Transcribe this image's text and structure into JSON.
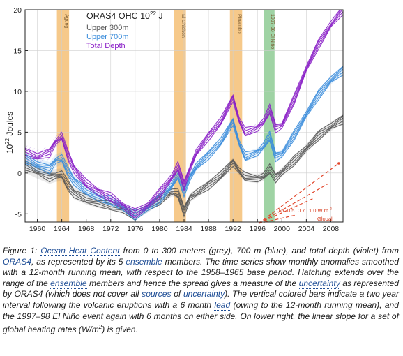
{
  "chart_data": {
    "type": "line",
    "title": "ORAS4 OHC 10",
    "title_sup": "22",
    "title_unit": "J",
    "ylabel": "10",
    "ylabel_sup": "22",
    "ylabel_unit": "Joules",
    "xlim": [
      1958,
      2010
    ],
    "ylim": [
      -6,
      20
    ],
    "xticks": [
      "1960",
      "1964",
      "1968",
      "1972",
      "1976",
      "1980",
      "1984",
      "1988",
      "1992",
      "1996",
      "2000",
      "2004",
      "2008"
    ],
    "yticks": [
      "-5",
      "0",
      "5",
      "10",
      "15",
      "20"
    ],
    "legend": [
      {
        "name": "Upper 300m",
        "color": "#555555"
      },
      {
        "name": "Upper 700m",
        "color": "#3b8ddb"
      },
      {
        "name": "Total Depth",
        "color": "#8a1fc7"
      }
    ],
    "event_bars": [
      {
        "label": "Agung",
        "start": 1963.2,
        "end": 1965.2,
        "color": "#f6c98a"
      },
      {
        "label": "El Chichon",
        "start": 1982.3,
        "end": 1984.3,
        "color": "#f6c98a"
      },
      {
        "label": "Pinatubo",
        "start": 1991.5,
        "end": 1993.5,
        "color": "#f6c98a"
      },
      {
        "label": "1997-98 El Niño",
        "start": 1997.0,
        "end": 1998.8,
        "color": "#9fd3a4"
      }
    ],
    "series": [
      {
        "name": "Upper 300m",
        "color": "#555555",
        "x": [
          1958,
          1960,
          1962,
          1963,
          1964,
          1965,
          1966,
          1968,
          1970,
          1972,
          1974,
          1976,
          1978,
          1980,
          1982,
          1983,
          1984,
          1985,
          1986,
          1988,
          1990,
          1992,
          1993,
          1994,
          1996,
          1997,
          1998,
          1999,
          2000,
          2002,
          2004,
          2006,
          2008,
          2010
        ],
        "y": [
          1.0,
          0.2,
          -0.5,
          -0.3,
          -0.2,
          -1.5,
          -2.5,
          -3.2,
          -3.7,
          -4.0,
          -4.5,
          -5.2,
          -4.3,
          -3.3,
          -2.3,
          -2.5,
          -4.7,
          -3.0,
          -2.5,
          -1.5,
          -0.3,
          1.3,
          0.3,
          -0.5,
          -0.7,
          -0.4,
          0.5,
          -0.6,
          0.1,
          1.5,
          3.0,
          4.6,
          5.7,
          6.6
        ]
      },
      {
        "name": "Upper 700m",
        "color": "#3b8ddb",
        "x": [
          1958,
          1960,
          1962,
          1963,
          1964,
          1965,
          1966,
          1968,
          1970,
          1972,
          1974,
          1976,
          1978,
          1980,
          1982,
          1983,
          1984,
          1985,
          1986,
          1988,
          1990,
          1992,
          1993,
          1994,
          1996,
          1997,
          1998,
          1999,
          2000,
          2002,
          2004,
          2006,
          2008,
          2010
        ],
        "y": [
          1.8,
          1.0,
          0.5,
          1.5,
          1.8,
          0.2,
          -1.0,
          -2.2,
          -3.0,
          -3.4,
          -4.2,
          -5.2,
          -4.3,
          -3.2,
          -1.5,
          -0.2,
          -2.3,
          -0.5,
          0.8,
          2.2,
          3.8,
          6.3,
          3.7,
          2.0,
          2.5,
          3.3,
          4.5,
          2.0,
          2.3,
          4.6,
          7.2,
          9.6,
          11.4,
          12.6
        ]
      },
      {
        "name": "Total Depth",
        "color": "#8a1fc7",
        "x": [
          1958,
          1960,
          1962,
          1963,
          1964,
          1965,
          1966,
          1968,
          1970,
          1972,
          1974,
          1976,
          1978,
          1980,
          1982,
          1983,
          1984,
          1985,
          1986,
          1988,
          1990,
          1992,
          1993,
          1994,
          1996,
          1997,
          1998,
          1999,
          2000,
          2002,
          2004,
          2006,
          2008,
          2010
        ],
        "y": [
          2.5,
          2.0,
          2.5,
          3.8,
          4.5,
          2.2,
          0.5,
          -1.3,
          -2.3,
          -3.0,
          -4.0,
          -5.0,
          -4.0,
          -2.5,
          -0.5,
          0.8,
          -1.5,
          0.6,
          2.5,
          4.5,
          6.3,
          9.2,
          6.5,
          5.0,
          5.5,
          6.3,
          7.8,
          5.5,
          5.8,
          9.0,
          12.8,
          15.8,
          18.2,
          20.0
        ]
      }
    ],
    "heating_rate_label": "W m",
    "heating_rate_label_sup": "-2",
    "heating_rates": [
      "0.5",
      "0.5",
      "0.7",
      "1.0"
    ],
    "heating_rate_region": "Global",
    "grid": true
  },
  "caption": {
    "parts": [
      {
        "t": "Figure 1: "
      },
      {
        "t": "Ocean Heat Content",
        "link": true
      },
      {
        "t": " from 0 to 300 meters (grey), 700 m (blue), and total depth (violet) from "
      },
      {
        "t": "ORAS4",
        "link": true
      },
      {
        "t": ", as represented by its 5 "
      },
      {
        "t": "ensemble",
        "link": true
      },
      {
        "t": " members. The time series show monthly anomalies smoothed with a 12-month running mean, with respect to the 1958–1965 base period. Hatching extends over the range of the "
      },
      {
        "t": "ensemble",
        "link": true
      },
      {
        "t": " members and hence the spread gives a measure of the "
      },
      {
        "t": "uncertainty",
        "link": true
      },
      {
        "t": " as represented by ORAS4 (which does not cover all "
      },
      {
        "t": "sources",
        "link": true
      },
      {
        "t": " of "
      },
      {
        "t": "uncertainty",
        "link": true
      },
      {
        "t": "). The vertical colored bars indicate a two year interval following the volcanic eruptions with a 6 month "
      },
      {
        "t": "lead",
        "link": true
      },
      {
        "t": " (owing to the 12-month running mean), and the 1997–98 El Niño event again with 6 months on either side. On lower right, the linear slope for a set of global heating rates (W/m"
      },
      {
        "t": "2",
        "sup": true
      },
      {
        "t": ") is given."
      }
    ]
  }
}
